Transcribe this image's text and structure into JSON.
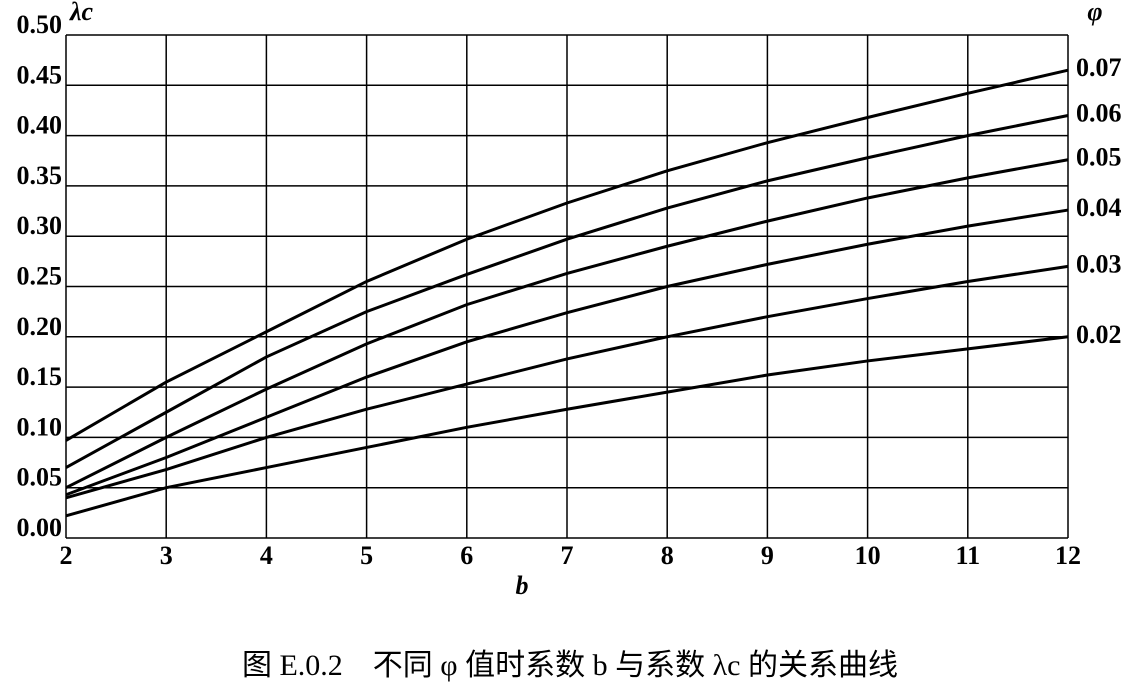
{
  "chart_data": {
    "type": "line",
    "caption": "图 E.0.2　不同 φ 值时系数 b 与系数 λc 的关系曲线",
    "x_label": "b",
    "y_label": "λc",
    "legend_title": "φ",
    "x": [
      2,
      3,
      4,
      5,
      6,
      7,
      8,
      9,
      10,
      11,
      12
    ],
    "series": [
      {
        "name": "0.07",
        "color": "#000000",
        "values": [
          0.097,
          0.155,
          0.205,
          0.255,
          0.297,
          0.333,
          0.365,
          0.393,
          0.418,
          0.442,
          0.465
        ]
      },
      {
        "name": "0.06",
        "color": "#000000",
        "values": [
          0.07,
          0.125,
          0.18,
          0.225,
          0.262,
          0.297,
          0.328,
          0.355,
          0.378,
          0.4,
          0.42
        ]
      },
      {
        "name": "0.05",
        "color": "#000000",
        "values": [
          0.05,
          0.1,
          0.148,
          0.193,
          0.232,
          0.263,
          0.29,
          0.315,
          0.338,
          0.358,
          0.376
        ]
      },
      {
        "name": "0.04",
        "color": "#000000",
        "values": [
          0.043,
          0.08,
          0.12,
          0.16,
          0.195,
          0.224,
          0.25,
          0.272,
          0.292,
          0.31,
          0.326
        ]
      },
      {
        "name": "0.03",
        "color": "#000000",
        "values": [
          0.04,
          0.068,
          0.1,
          0.128,
          0.153,
          0.178,
          0.2,
          0.22,
          0.238,
          0.255,
          0.27
        ]
      },
      {
        "name": "0.02",
        "color": "#000000",
        "values": [
          0.022,
          0.05,
          0.07,
          0.09,
          0.11,
          0.128,
          0.145,
          0.162,
          0.176,
          0.188,
          0.2
        ]
      }
    ],
    "xlim": [
      2,
      12
    ],
    "ylim": [
      0,
      0.5
    ],
    "xticks": [
      2,
      3,
      4,
      5,
      6,
      7,
      8,
      9,
      10,
      11,
      12
    ],
    "yticks": [
      {
        "value": 0,
        "label": "0.00"
      },
      {
        "value": 0.05,
        "label": "0.05"
      },
      {
        "value": 0.1,
        "label": "0.10"
      },
      {
        "value": 0.15,
        "label": "0.15"
      },
      {
        "value": 0.2,
        "label": "0.20"
      },
      {
        "value": 0.25,
        "label": "0.25"
      },
      {
        "value": 0.3,
        "label": "0.30"
      },
      {
        "value": 0.35,
        "label": "0.35"
      },
      {
        "value": 0.4,
        "label": "0.40"
      },
      {
        "value": 0.45,
        "label": "0.45"
      },
      {
        "value": 0.5,
        "label": "0.50"
      }
    ],
    "grid": true
  }
}
